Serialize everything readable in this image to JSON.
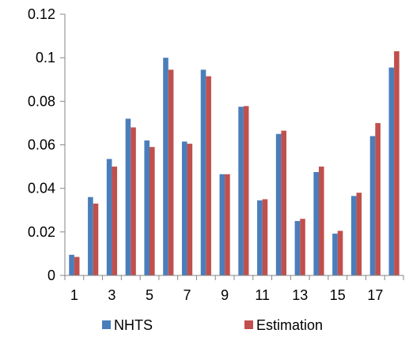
{
  "chart_data": {
    "type": "bar",
    "title": "",
    "xlabel": "",
    "ylabel": "",
    "categories": [
      "1",
      "2",
      "3",
      "4",
      "5",
      "6",
      "7",
      "8",
      "9",
      "10",
      "11",
      "12",
      "13",
      "14",
      "15",
      "16",
      "17",
      "18"
    ],
    "x_tick_labels": [
      "1",
      "3",
      "5",
      "7",
      "9",
      "11",
      "13",
      "15",
      "17"
    ],
    "y_tick_labels": [
      "0",
      "0.02",
      "0.04",
      "0.06",
      "0.08",
      "0.1",
      "0.12"
    ],
    "ylim": [
      0,
      0.12
    ],
    "grid": false,
    "legend": "bottom",
    "series": [
      {
        "name": "NHTS",
        "color": "#4a7ebb",
        "values": [
          0.0095,
          0.036,
          0.0535,
          0.072,
          0.062,
          0.1,
          0.0615,
          0.0945,
          0.0465,
          0.0775,
          0.0345,
          0.065,
          0.025,
          0.0475,
          0.0192,
          0.0365,
          0.064,
          0.0955
        ]
      },
      {
        "name": "Estimation",
        "color": "#c0504d",
        "values": [
          0.0085,
          0.033,
          0.05,
          0.068,
          0.059,
          0.0945,
          0.0605,
          0.0915,
          0.0465,
          0.0778,
          0.035,
          0.0665,
          0.026,
          0.05,
          0.0205,
          0.038,
          0.07,
          0.103
        ]
      }
    ]
  }
}
